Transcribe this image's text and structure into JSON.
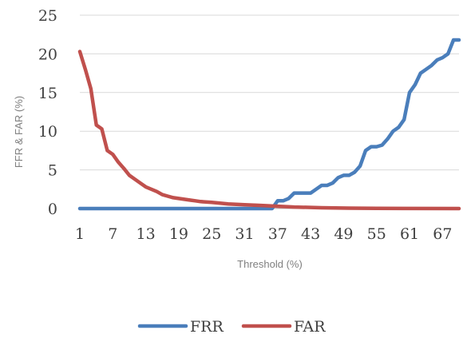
{
  "chart_data": {
    "type": "line",
    "title": "",
    "xlabel": "Threshold (%)",
    "ylabel": "FFR & FAR (%)",
    "ylim": [
      0,
      25
    ],
    "yticks": [
      0,
      5,
      10,
      15,
      20,
      25
    ],
    "xlim": [
      1,
      70
    ],
    "xtick_labels": [
      "1",
      "7",
      "13",
      "19",
      "25",
      "31",
      "37",
      "43",
      "49",
      "55",
      "61",
      "67"
    ],
    "grid": true,
    "legend_position": "bottom",
    "series": [
      {
        "name": "FRR",
        "color": "#4a7ebb",
        "points": [
          [
            1,
            0
          ],
          [
            36,
            0
          ],
          [
            37,
            1.0
          ],
          [
            38,
            1.0
          ],
          [
            39,
            1.3
          ],
          [
            40,
            2.0
          ],
          [
            41,
            2.0
          ],
          [
            42,
            2.0
          ],
          [
            43,
            2.0
          ],
          [
            44,
            2.5
          ],
          [
            45,
            3.0
          ],
          [
            46,
            3.0
          ],
          [
            47,
            3.3
          ],
          [
            48,
            4.0
          ],
          [
            49,
            4.3
          ],
          [
            50,
            4.3
          ],
          [
            51,
            4.7
          ],
          [
            52,
            5.5
          ],
          [
            53,
            7.5
          ],
          [
            54,
            8.0
          ],
          [
            55,
            8.0
          ],
          [
            56,
            8.2
          ],
          [
            57,
            9.0
          ],
          [
            58,
            10.0
          ],
          [
            59,
            10.5
          ],
          [
            60,
            11.5
          ],
          [
            61,
            15.0
          ],
          [
            62,
            16.0
          ],
          [
            63,
            17.5
          ],
          [
            64,
            18.0
          ],
          [
            65,
            18.5
          ],
          [
            66,
            19.2
          ],
          [
            67,
            19.5
          ],
          [
            68,
            20.0
          ],
          [
            69,
            21.8
          ],
          [
            70,
            21.8
          ]
        ]
      },
      {
        "name": "FAR",
        "color": "#c0504d",
        "points": [
          [
            1,
            20.3
          ],
          [
            2,
            18.0
          ],
          [
            3,
            15.5
          ],
          [
            4,
            10.8
          ],
          [
            5,
            10.3
          ],
          [
            6,
            7.5
          ],
          [
            7,
            7.0
          ],
          [
            8,
            6.0
          ],
          [
            9,
            5.2
          ],
          [
            10,
            4.3
          ],
          [
            11,
            3.8
          ],
          [
            12,
            3.3
          ],
          [
            13,
            2.8
          ],
          [
            14,
            2.5
          ],
          [
            15,
            2.2
          ],
          [
            16,
            1.8
          ],
          [
            17,
            1.6
          ],
          [
            18,
            1.4
          ],
          [
            19,
            1.3
          ],
          [
            20,
            1.2
          ],
          [
            21,
            1.1
          ],
          [
            22,
            1.0
          ],
          [
            23,
            0.9
          ],
          [
            25,
            0.8
          ],
          [
            28,
            0.6
          ],
          [
            31,
            0.5
          ],
          [
            34,
            0.4
          ],
          [
            37,
            0.3
          ],
          [
            40,
            0.2
          ],
          [
            45,
            0.1
          ],
          [
            50,
            0.05
          ],
          [
            55,
            0.02
          ],
          [
            60,
            0.01
          ],
          [
            70,
            0.0
          ]
        ]
      }
    ]
  }
}
